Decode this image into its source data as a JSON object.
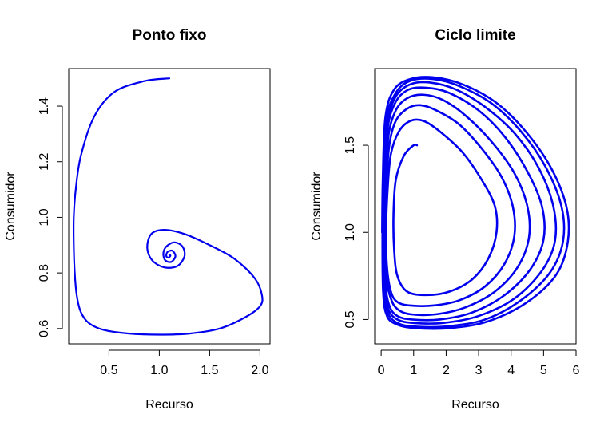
{
  "chart_data": [
    {
      "type": "line",
      "title": "Ponto fixo",
      "xlabel": "Recurso",
      "ylabel": "Consumidor",
      "xlim": [
        0.1,
        2.1
      ],
      "ylim": [
        0.545,
        1.535
      ],
      "xticks": [
        0.5,
        1.0,
        1.5,
        2.0
      ],
      "xtick_labels": [
        "0.5",
        "1.0",
        "1.5",
        "2.0"
      ],
      "yticks": [
        0.6,
        0.8,
        1.0,
        1.2,
        1.4
      ],
      "ytick_labels": [
        "0.6",
        "0.8",
        "1.0",
        "1.2",
        "1.4"
      ],
      "color": "#0000ee",
      "grid": false,
      "series": [
        {
          "x": [
            1.1,
            0.85,
            0.55,
            0.35,
            0.22,
            0.17,
            0.15,
            0.15,
            0.16,
            0.18,
            0.22,
            0.3,
            0.45,
            0.7,
            1.0,
            1.3,
            1.6,
            1.85,
            2.0,
            2.02,
            1.95,
            1.75,
            1.5,
            1.25,
            1.05,
            0.92,
            0.88,
            0.93,
            1.05,
            1.18,
            1.25,
            1.23,
            1.15,
            1.07,
            1.04,
            1.06,
            1.12,
            1.16,
            1.13,
            1.08,
            1.07,
            1.09,
            1.11,
            1.1,
            1.1
          ],
          "y": [
            1.5,
            1.49,
            1.45,
            1.36,
            1.22,
            1.1,
            1.0,
            0.9,
            0.8,
            0.72,
            0.66,
            0.62,
            0.595,
            0.582,
            0.578,
            0.582,
            0.6,
            0.64,
            0.68,
            0.72,
            0.78,
            0.85,
            0.9,
            0.94,
            0.955,
            0.94,
            0.89,
            0.845,
            0.82,
            0.825,
            0.86,
            0.895,
            0.91,
            0.895,
            0.87,
            0.845,
            0.84,
            0.86,
            0.88,
            0.875,
            0.86,
            0.855,
            0.862,
            0.866,
            0.865
          ]
        }
      ]
    },
    {
      "type": "line",
      "title": "Ciclo limite",
      "xlabel": "Recurso",
      "ylabel": "Consumidor",
      "xlim": [
        -0.2,
        6.0
      ],
      "ylim": [
        0.36,
        1.94
      ],
      "xticks": [
        0,
        1,
        2,
        3,
        4,
        5,
        6
      ],
      "xtick_labels": [
        "0",
        "1",
        "2",
        "3",
        "4",
        "5",
        "6"
      ],
      "yticks": [
        0.5,
        1.0,
        1.5
      ],
      "ytick_labels": [
        "0.5",
        "1.0",
        "1.5"
      ],
      "color": "#0000ee",
      "grid": false,
      "series": [
        {
          "x": [
            1.1,
            1.0,
            0.7,
            0.45,
            0.38,
            0.4,
            0.5,
            0.8,
            1.4,
            2.1,
            2.8,
            3.3,
            3.55,
            3.5,
            3.1,
            2.5,
            1.8,
            1.3,
            0.9,
            0.55,
            0.3,
            0.2,
            0.15,
            0.18,
            0.3,
            0.5,
            0.9,
            1.6,
            2.4,
            3.2,
            3.8,
            4.1,
            4.05,
            3.7,
            3.1,
            2.4,
            1.7,
            1.2,
            0.8,
            0.45,
            0.25,
            0.15,
            0.12,
            0.15,
            0.3,
            0.5,
            0.9,
            1.7,
            2.6,
            3.5,
            4.2,
            4.55,
            4.5,
            4.1,
            3.4,
            2.6,
            1.9,
            1.3,
            0.8,
            0.45,
            0.22,
            0.12,
            0.09,
            0.12,
            0.25,
            0.5,
            0.95,
            1.8,
            2.8,
            3.8,
            4.6,
            5.0,
            4.95,
            4.5,
            3.8,
            3.0,
            2.1,
            1.4,
            0.85,
            0.45,
            0.2,
            0.1,
            0.07,
            0.1,
            0.22,
            0.5,
            1.0,
            1.9,
            3.0,
            4.1,
            4.95,
            5.35,
            5.3,
            4.85,
            4.1,
            3.2,
            2.3,
            1.5,
            0.9,
            0.45,
            0.18,
            0.08,
            0.05,
            0.08,
            0.2,
            0.5,
            1.0,
            2.0,
            3.2,
            4.3,
            5.2,
            5.6,
            5.55,
            5.05,
            4.3,
            3.4,
            2.4,
            1.6,
            0.9,
            0.45,
            0.15,
            0.06,
            0.04,
            0.06,
            0.18,
            0.5,
            1.05,
            2.1,
            3.3,
            4.5,
            5.4,
            5.75,
            5.7,
            5.2,
            4.4,
            3.5,
            2.5,
            1.6,
            0.9,
            0.4,
            0.13,
            0.05,
            0.03
          ],
          "y": [
            1.5,
            1.5,
            1.44,
            1.3,
            1.1,
            0.9,
            0.75,
            0.66,
            0.64,
            0.66,
            0.73,
            0.85,
            1.0,
            1.15,
            1.3,
            1.46,
            1.58,
            1.64,
            1.64,
            1.58,
            1.45,
            1.25,
            1.0,
            0.8,
            0.66,
            0.6,
            0.58,
            0.58,
            0.61,
            0.69,
            0.82,
            0.98,
            1.15,
            1.32,
            1.48,
            1.62,
            1.7,
            1.73,
            1.71,
            1.64,
            1.5,
            1.25,
            1.0,
            0.75,
            0.62,
            0.56,
            0.53,
            0.53,
            0.57,
            0.66,
            0.8,
            0.97,
            1.15,
            1.34,
            1.52,
            1.67,
            1.76,
            1.79,
            1.77,
            1.7,
            1.55,
            1.25,
            1.0,
            0.72,
            0.58,
            0.52,
            0.5,
            0.5,
            0.54,
            0.64,
            0.79,
            0.96,
            1.15,
            1.35,
            1.55,
            1.7,
            1.8,
            1.83,
            1.82,
            1.75,
            1.6,
            1.3,
            1.0,
            0.7,
            0.56,
            0.5,
            0.48,
            0.48,
            0.52,
            0.62,
            0.78,
            0.95,
            1.15,
            1.37,
            1.57,
            1.72,
            1.82,
            1.86,
            1.85,
            1.78,
            1.62,
            1.3,
            1.0,
            0.68,
            0.54,
            0.48,
            0.46,
            0.46,
            0.5,
            0.61,
            0.77,
            0.95,
            1.15,
            1.38,
            1.58,
            1.74,
            1.84,
            1.88,
            1.87,
            1.8,
            1.64,
            1.3,
            1.0,
            0.66,
            0.52,
            0.47,
            0.45,
            0.45,
            0.49,
            0.6,
            0.76,
            0.95,
            1.15,
            1.38,
            1.59,
            1.75,
            1.85,
            1.89,
            1.88,
            1.82,
            1.66,
            1.3,
            1.0
          ]
        }
      ]
    }
  ]
}
